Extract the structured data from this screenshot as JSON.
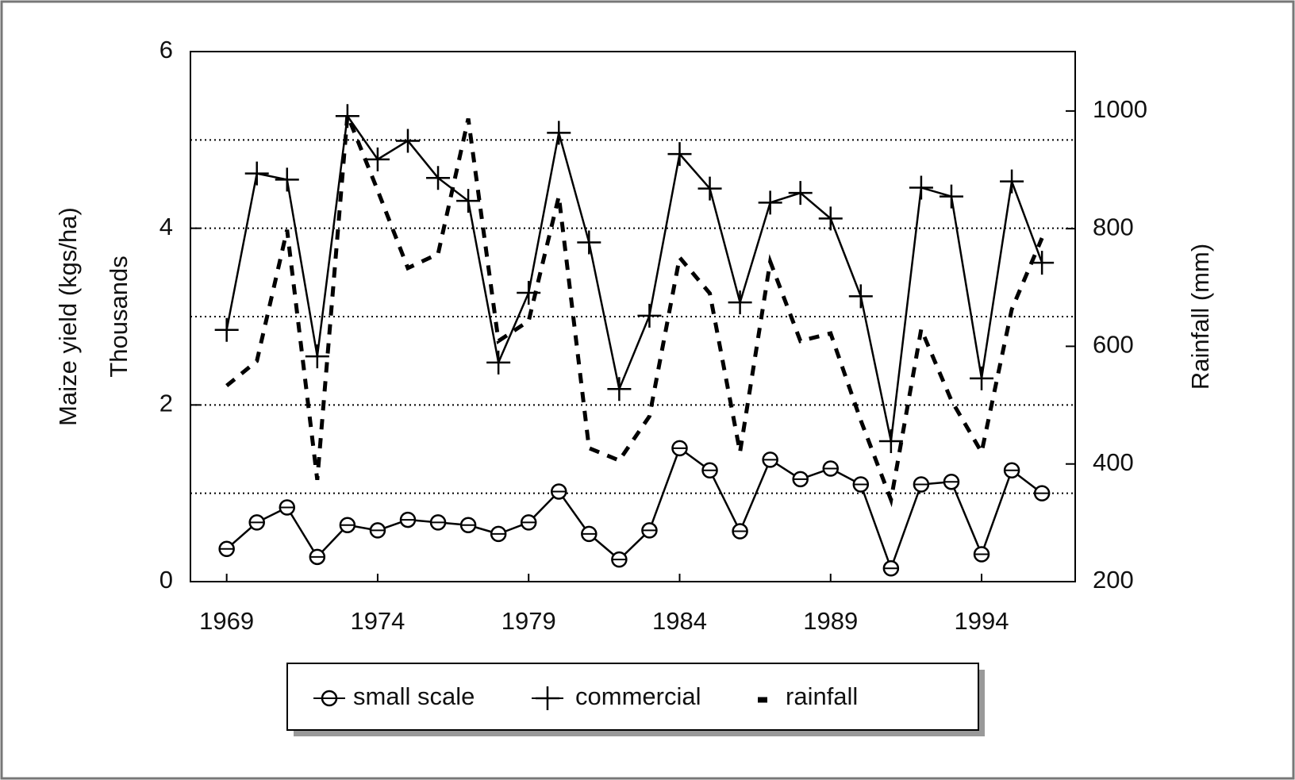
{
  "chart_data": {
    "type": "line",
    "x": [
      1969,
      1970,
      1971,
      1972,
      1973,
      1974,
      1975,
      1976,
      1977,
      1978,
      1979,
      1980,
      1981,
      1982,
      1983,
      1984,
      1985,
      1986,
      1987,
      1988,
      1989,
      1990,
      1991,
      1992,
      1993,
      1994,
      1995,
      1996
    ],
    "xlim": [
      1967.8,
      1997.1
    ],
    "xticks": [
      1969,
      1974,
      1979,
      1984,
      1989,
      1994
    ],
    "y_label": "Maize yield (kgs/ha)",
    "y_sublabel": "Thousands",
    "y2_label": "Rainfall (mm)",
    "ylim": [
      0,
      6
    ],
    "yticks": [
      0,
      2,
      4,
      6
    ],
    "ygrid": [
      1,
      2,
      3,
      4,
      5
    ],
    "y2lim": [
      200,
      1101
    ],
    "y2ticks": [
      200,
      400,
      600,
      800,
      1000
    ],
    "grid": true,
    "legend": "bottom",
    "series": [
      {
        "name": "small scale",
        "color": "#000000",
        "marker": "circle",
        "values": [
          0.37,
          0.67,
          0.84,
          0.28,
          0.64,
          0.58,
          0.7,
          0.67,
          0.64,
          0.54,
          0.67,
          1.02,
          0.54,
          0.25,
          0.58,
          1.51,
          1.26,
          0.57,
          1.38,
          1.16,
          1.28,
          1.1,
          0.15,
          1.1,
          1.13,
          0.31,
          1.26,
          1.0
        ]
      },
      {
        "name": "commercial",
        "color": "#000000",
        "marker": "plus",
        "values": [
          2.85,
          4.62,
          4.55,
          2.55,
          5.27,
          4.78,
          4.99,
          4.57,
          4.31,
          2.48,
          3.27,
          5.08,
          3.84,
          2.18,
          3.01,
          4.84,
          4.45,
          3.16,
          4.29,
          4.4,
          4.11,
          3.23,
          1.59,
          4.46,
          4.36,
          2.3,
          4.53,
          3.61
        ]
      },
      {
        "name": "rainfall",
        "color": "#000000",
        "marker": "dash",
        "axis": "y2",
        "values": [
          533,
          575,
          798,
          373,
          993,
          865,
          733,
          757,
          987,
          609,
          643,
          855,
          427,
          406,
          481,
          751,
          690,
          420,
          744,
          609,
          622,
          474,
          339,
          629,
          508,
          420,
          663,
          784
        ]
      }
    ]
  }
}
